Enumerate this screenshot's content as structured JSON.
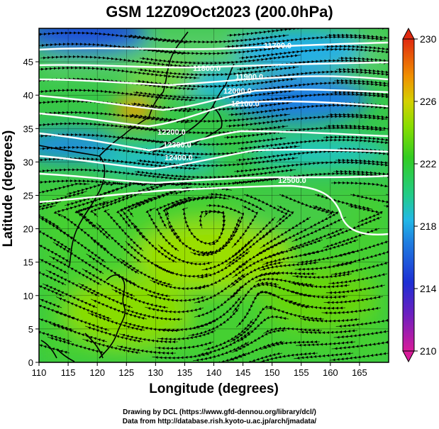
{
  "title": "GSM 12Z09Oct2023 (200.0hPa)",
  "x_axis": {
    "label": "Longitude (degrees)",
    "range": [
      110,
      170
    ],
    "ticks": [
      110,
      115,
      120,
      125,
      130,
      135,
      140,
      145,
      150,
      155,
      160,
      165
    ]
  },
  "y_axis": {
    "label": "Latitude  (degrees)",
    "range": [
      0,
      50
    ],
    "ticks": [
      0,
      5,
      10,
      15,
      20,
      25,
      30,
      35,
      40,
      45
    ]
  },
  "colorbar": {
    "ticks": [
      210,
      214,
      218,
      222,
      226,
      230
    ],
    "range": [
      210,
      230
    ]
  },
  "contour_labels": [
    "11700.0",
    "11800.0",
    "11900.0",
    "12000.0",
    "12100.0",
    "12200.0",
    "12300.0",
    "12400.0",
    "12500.0"
  ],
  "credits": {
    "drawing": "Drawing by DCL (https://www.gfd-dennou.org/library/dcl/)",
    "data": "Data from http://database.rish.kyoto-u.ac.jp/arch/jmadata/"
  },
  "colors": {
    "cold": "#1a3ccc",
    "cool": "#22a8e0",
    "neutral": "#44cc22",
    "warm": "#88dd00",
    "hot": "#f0a000",
    "contour": "#ffffff",
    "streamline": "#000000"
  }
}
